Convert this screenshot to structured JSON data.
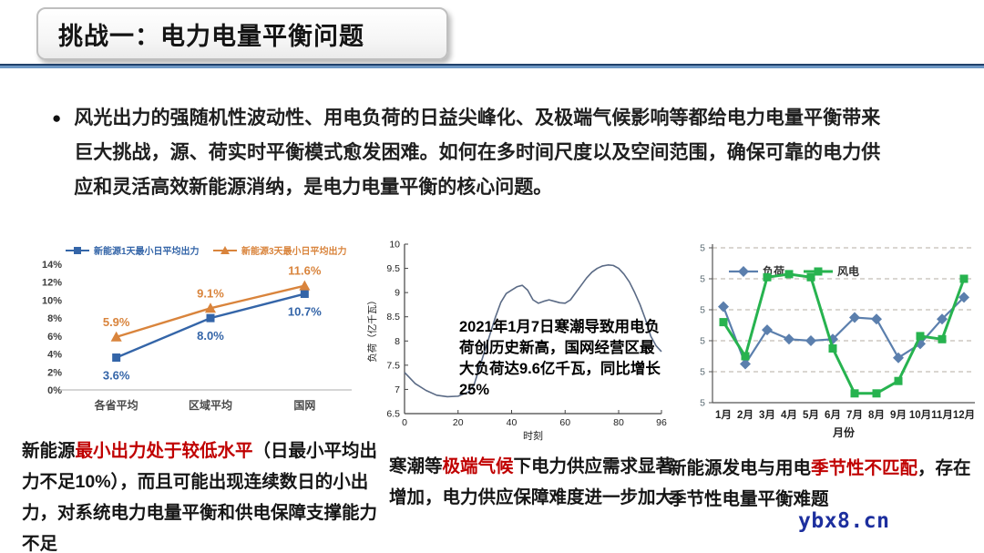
{
  "header": {
    "title": "挑战一：电力电量平衡问题"
  },
  "intro": {
    "bullet": "●",
    "text": "风光出力的强随机性波动性、用电负荷的日益尖峰化、及极端气候影响等都给电力电量平衡带来巨大挑战，源、荷实时平衡模式愈发困难。如何在多时间尺度以及空间范围，确保可靠的电力供应和灵活高效新能源消纳，是电力电量平衡的核心问题。"
  },
  "chart_data": [
    {
      "type": "line",
      "categories": [
        "各省平均",
        "区域平均",
        "国网"
      ],
      "series": [
        {
          "name": "新能源1天最小日平均出力",
          "color": "#3465a8",
          "marker": "square",
          "values": [
            3.6,
            8.0,
            10.7
          ],
          "data_labels": [
            "3.6%",
            "8.0%",
            "10.7%"
          ],
          "label_side": "below"
        },
        {
          "name": "新能源3天最小日平均出力",
          "color": "#d9843c",
          "marker": "triangle",
          "values": [
            5.9,
            9.1,
            11.6
          ],
          "data_labels": [
            "5.9%",
            "9.1%",
            "11.6%"
          ],
          "label_side": "above"
        }
      ],
      "ylim": [
        0,
        14
      ],
      "ytick_step": 2,
      "ytick_suffix": "%",
      "legend_position": "top",
      "grid": false
    },
    {
      "type": "line",
      "xlabel": "时刻",
      "ylabel": "负荷（亿千瓦）",
      "xlim": [
        0,
        96
      ],
      "ylim": [
        6.5,
        10
      ],
      "yticks": [
        6.5,
        7,
        7.5,
        8,
        8.5,
        9,
        9.5,
        10
      ],
      "xticks": [
        0,
        20,
        40,
        60,
        80,
        96
      ],
      "color": "#5a6a85",
      "points": [
        [
          0,
          7.35
        ],
        [
          4,
          7.12
        ],
        [
          8,
          6.98
        ],
        [
          12,
          6.88
        ],
        [
          16,
          6.85
        ],
        [
          20,
          6.86
        ],
        [
          24,
          6.95
        ],
        [
          26,
          7.1
        ],
        [
          28,
          7.45
        ],
        [
          30,
          7.8
        ],
        [
          32,
          8.15
        ],
        [
          34,
          8.5
        ],
        [
          36,
          8.8
        ],
        [
          38,
          8.98
        ],
        [
          40,
          9.05
        ],
        [
          42,
          9.12
        ],
        [
          44,
          9.15
        ],
        [
          46,
          9.05
        ],
        [
          48,
          8.85
        ],
        [
          50,
          8.78
        ],
        [
          52,
          8.82
        ],
        [
          54,
          8.85
        ],
        [
          56,
          8.82
        ],
        [
          58,
          8.79
        ],
        [
          60,
          8.78
        ],
        [
          62,
          8.85
        ],
        [
          64,
          9.0
        ],
        [
          66,
          9.15
        ],
        [
          68,
          9.3
        ],
        [
          70,
          9.42
        ],
        [
          72,
          9.5
        ],
        [
          74,
          9.55
        ],
        [
          76,
          9.57
        ],
        [
          78,
          9.56
        ],
        [
          80,
          9.5
        ],
        [
          82,
          9.38
        ],
        [
          84,
          9.22
        ],
        [
          86,
          9.0
        ],
        [
          88,
          8.75
        ],
        [
          90,
          8.45
        ],
        [
          92,
          8.1
        ],
        [
          94,
          7.9
        ],
        [
          96,
          7.78
        ]
      ],
      "annotation": "2021年1月7日寒潮导致用电负荷创历史新高，国网经营区最大负荷达9.6亿千瓦，同比增长25%"
    },
    {
      "type": "line",
      "categories": [
        "1月",
        "2月",
        "3月",
        "4月",
        "5月",
        "6月",
        "7月",
        "8月",
        "9月",
        "10月",
        "11月",
        "12月"
      ],
      "xlabel": "月份",
      "ylim": [
        0,
        5
      ],
      "ytick_count": 6,
      "ytick_label_illegible": "5",
      "grid": "dashed-horizontal",
      "legend_position": "top-inside",
      "series": [
        {
          "name": "负荷",
          "color": "#5b7fad",
          "marker": "diamond",
          "values": [
            3.1,
            1.25,
            2.35,
            2.05,
            2.0,
            2.05,
            2.75,
            2.7,
            1.45,
            1.9,
            2.7,
            3.4
          ]
        },
        {
          "name": "风电",
          "color": "#27b34f",
          "marker": "square",
          "values": [
            2.6,
            1.5,
            4.05,
            4.15,
            4.05,
            1.75,
            0.3,
            0.3,
            0.7,
            2.15,
            2.05,
            4.0
          ]
        }
      ]
    }
  ],
  "captions": [
    {
      "segments": [
        {
          "text": "新能源",
          "red": false
        },
        {
          "text": "最小出力处于较低水平",
          "red": true
        },
        {
          "text": "（日最小平均出力不足10%），而且可能出现连续数日的小出力，对系统电力电量平衡和供电保障支撑能力不足",
          "red": false
        }
      ]
    },
    {
      "segments": [
        {
          "text": "寒潮等",
          "red": false
        },
        {
          "text": "极端气候",
          "red": true
        },
        {
          "text": "下电力供应需求显著增加，电力供应保障难度进一步加大",
          "red": false
        }
      ]
    },
    {
      "segments": [
        {
          "text": "新能源发电与用电",
          "red": false
        },
        {
          "text": "季节性不匹配",
          "red": true
        },
        {
          "text": "，存在季节性电量平衡难题",
          "red": false
        }
      ]
    }
  ],
  "watermark": "ybx8.cn",
  "colors": {
    "divider_dark": "#20416b",
    "divider_light": "#6d97c4",
    "highlight_red": "#c00000",
    "series1_blue": "#3465a8",
    "series1_orange": "#d9843c",
    "load_curve": "#5a6a85",
    "load_blue": "#5b7fad",
    "wind_green": "#27b34f",
    "watermark_blue": "#1d2f9e"
  }
}
